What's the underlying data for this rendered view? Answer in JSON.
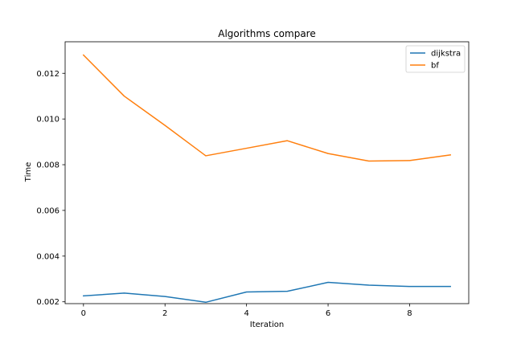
{
  "chart_data": {
    "type": "line",
    "title": "Algorithms compare",
    "xlabel": "Iteration",
    "ylabel": "Time",
    "x": [
      0,
      1,
      2,
      3,
      4,
      5,
      6,
      7,
      8,
      9
    ],
    "xlim": [
      -0.45,
      9.45
    ],
    "ylim": [
      0.00192,
      0.01338
    ],
    "xticks": [
      0,
      2,
      4,
      6,
      8
    ],
    "xtick_labels": [
      "0",
      "2",
      "4",
      "6",
      "8"
    ],
    "yticks": [
      0.002,
      0.004,
      0.006,
      0.008,
      0.01,
      0.012
    ],
    "ytick_labels": [
      "0.002",
      "0.004",
      "0.006",
      "0.008",
      "0.010",
      "0.012"
    ],
    "grid": false,
    "legend_position": "top-right",
    "series": [
      {
        "name": "dijkstra",
        "color": "#1f77b4",
        "values": [
          0.00226,
          0.00238,
          0.00223,
          0.00198,
          0.00243,
          0.00246,
          0.00285,
          0.00273,
          0.00267,
          0.00267
        ]
      },
      {
        "name": "bf",
        "color": "#ff7f0e",
        "values": [
          0.0128,
          0.011,
          0.00972,
          0.00839,
          0.00872,
          0.00905,
          0.00849,
          0.00816,
          0.00818,
          0.00843
        ]
      }
    ]
  }
}
